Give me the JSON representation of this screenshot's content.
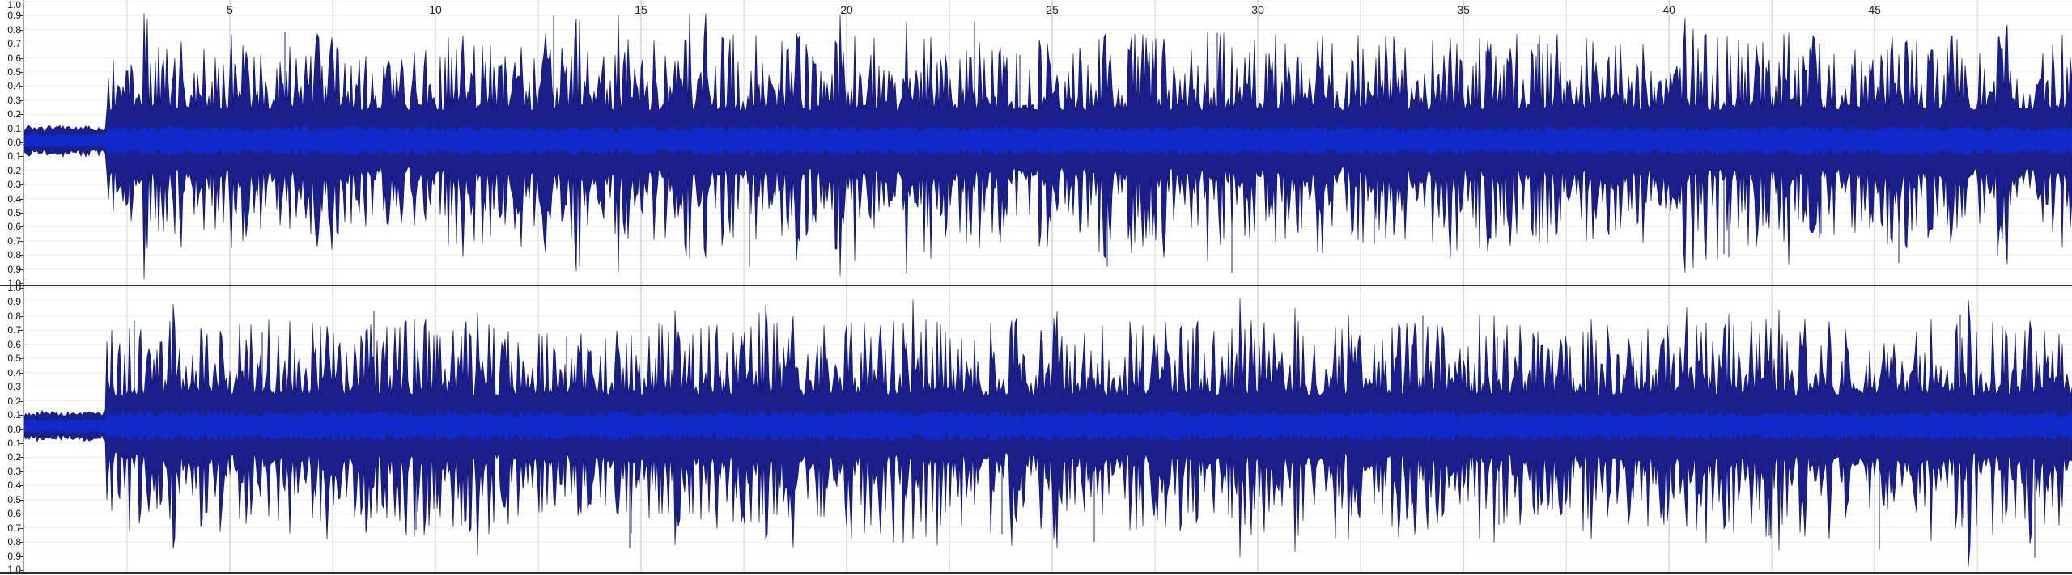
{
  "time_ruler": {
    "labels": [
      "5",
      "10",
      "15",
      "20",
      "25",
      "30",
      "35",
      "40",
      "45"
    ],
    "label_values": [
      5,
      10,
      15,
      20,
      25,
      30,
      35,
      40,
      45
    ],
    "start_seconds": 0,
    "end_seconds": 49.8,
    "minor_step_seconds": 2.5
  },
  "amplitude_axis": {
    "labels": [
      "1.0",
      "0.9",
      "0.8",
      "0.7",
      "0.6",
      "0.5",
      "0.4",
      "0.3",
      "0.2",
      "0.1",
      "0.0",
      "0.1",
      "0.2",
      "0.3",
      "0.4",
      "0.5",
      "0.6",
      "0.7",
      "0.8",
      "0.9",
      "1.0"
    ]
  },
  "channels": [
    {
      "id": "left"
    },
    {
      "id": "right"
    }
  ],
  "colors": {
    "waveform_outer": "#1a1f8c",
    "waveform_inner": "#1029c8",
    "waveform_dark": "#0c1164",
    "grid_major": "#c0c0c0",
    "grid_minor": "#eeeeee",
    "background": "#ffffff",
    "divider": "#2a2a2a"
  }
}
